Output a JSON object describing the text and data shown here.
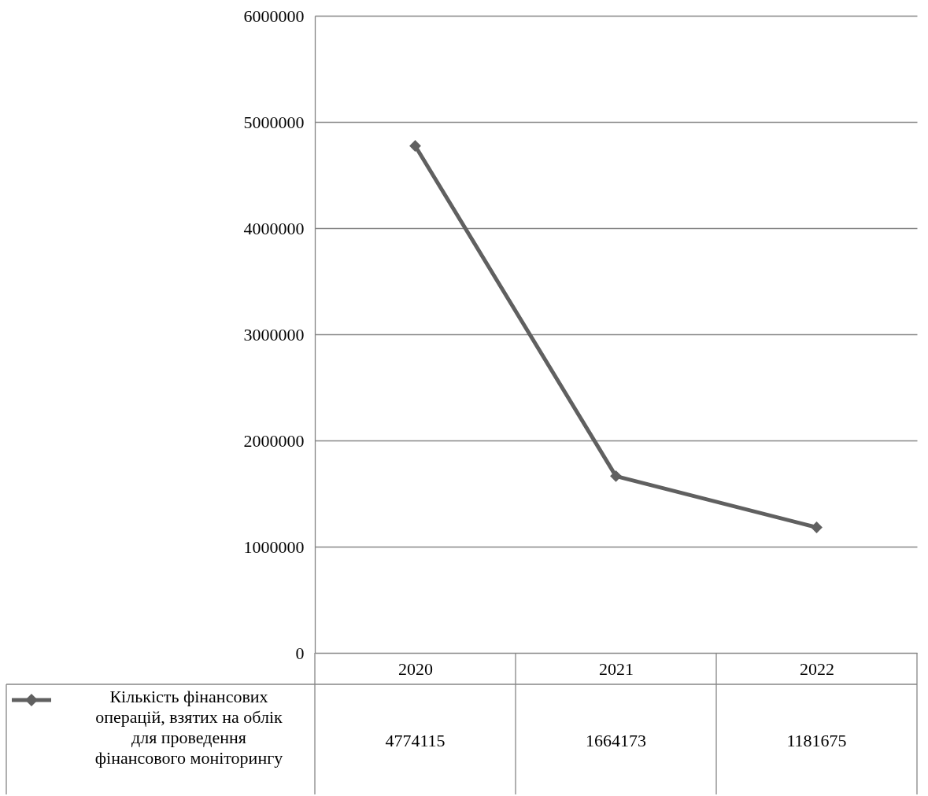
{
  "chart_data": {
    "type": "line",
    "categories": [
      "2020",
      "2021",
      "2022"
    ],
    "series": [
      {
        "name": "Кількість фінансових операцій, взятих на облік для проведення фінансового моніторингу",
        "color": "#606060",
        "values": [
          4774115,
          1664173,
          1181675
        ]
      }
    ],
    "ylim": [
      0,
      6000000
    ],
    "yticks": [
      0,
      1000000,
      2000000,
      3000000,
      4000000,
      5000000,
      6000000
    ],
    "grid": "y",
    "marker": "diamond",
    "data_labels": true,
    "legend": "bottom left"
  }
}
